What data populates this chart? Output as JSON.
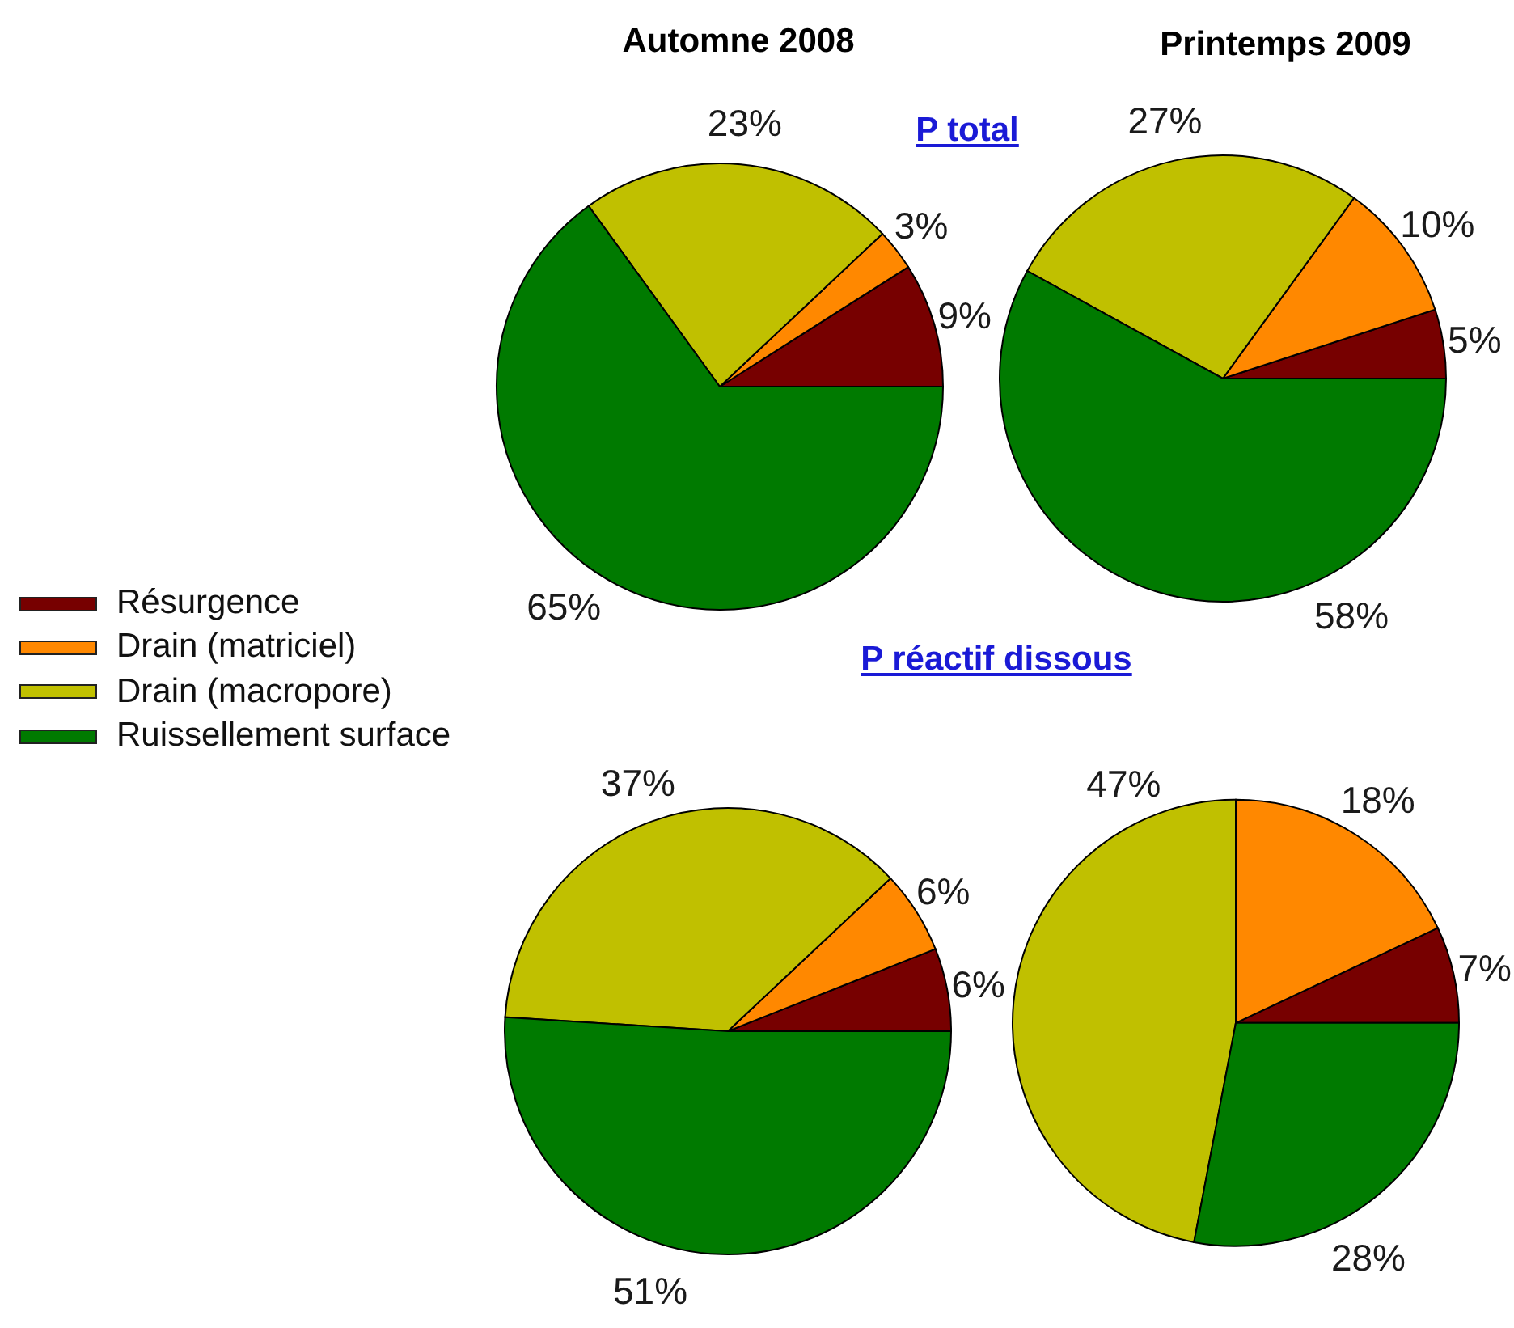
{
  "chart_data": [
    {
      "type": "pie",
      "title": "Automne 2008",
      "annotations": [
        "P total"
      ],
      "categories": [
        "Résurgence",
        "Drain (matriciel)",
        "Drain (macropore)",
        "Ruissellement surface"
      ],
      "values": [
        9,
        3,
        23,
        65
      ],
      "colors": [
        "#770000",
        "#ff8800",
        "#c0c000",
        "#007a00"
      ],
      "value_labels": [
        "9%",
        "3%",
        "23%",
        "65%"
      ],
      "legend": "left"
    },
    {
      "type": "pie",
      "title": "Printemps 2009",
      "categories": [
        null,
        null,
        null,
        null
      ],
      "values": [
        5,
        10,
        27,
        58
      ],
      "colors": [
        "#770000",
        "#ff8800",
        "#c0c000",
        "#007a00"
      ],
      "value_labels": [
        "5%",
        "10%",
        "27%",
        "58%"
      ]
    },
    {
      "type": "pie",
      "annotations": [
        "P réactif dissous"
      ],
      "categories": [
        null,
        null,
        null,
        null
      ],
      "values": [
        6,
        6,
        37,
        51
      ],
      "colors": [
        "#770000",
        "#ff8800",
        "#c0c000",
        "#007a00"
      ],
      "value_labels": [
        "6%",
        "6%",
        "37%",
        "51%"
      ]
    },
    {
      "type": "pie",
      "categories": [
        null,
        null,
        null,
        null
      ],
      "values": [
        7,
        18,
        47,
        28
      ],
      "colors": [
        "#770000",
        "#ff8800",
        "#c0c000",
        "#007a00"
      ],
      "value_labels": [
        "7%",
        "18%",
        "47%",
        "28%"
      ]
    }
  ]
}
